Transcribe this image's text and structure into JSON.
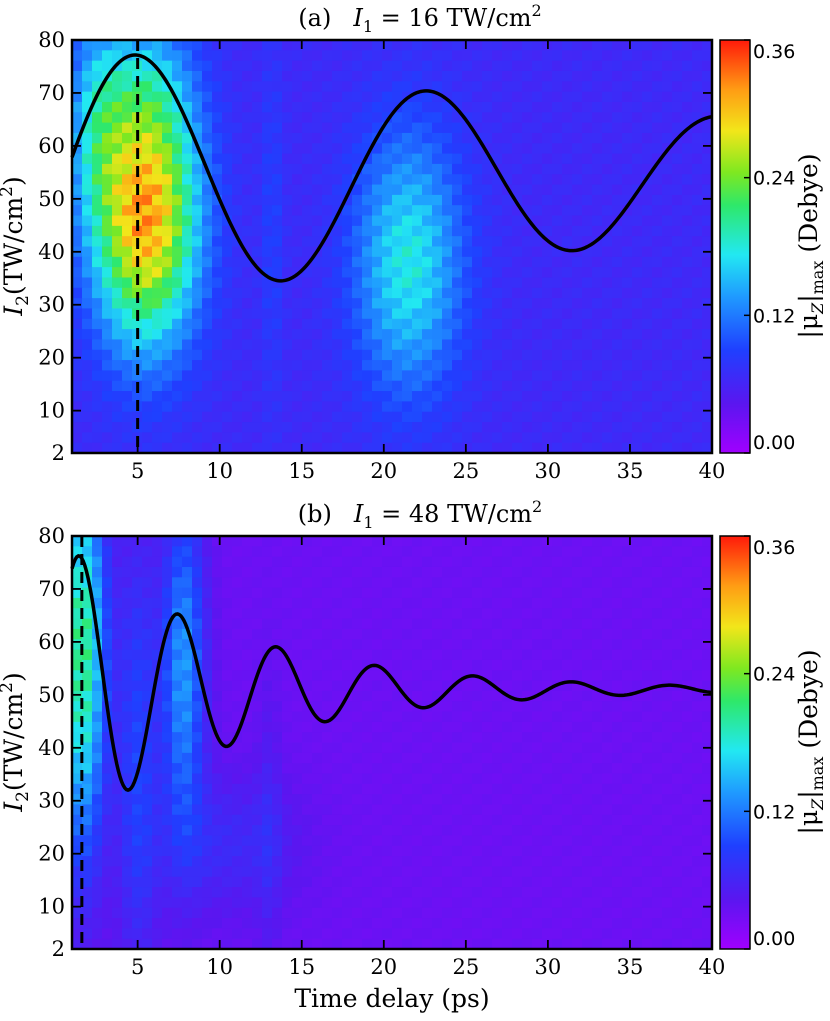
{
  "chart_data": [
    {
      "type": "heatmap",
      "title": "(a)   I₁ = 16 TW/cm²",
      "title_parts": {
        "label": "(a)",
        "var": "I",
        "sub": "1",
        "rest": " = 16 TW/cm",
        "sup": "2"
      },
      "ylabel_parts": {
        "var": "I",
        "sub": "2",
        "rest": "(TW/cm",
        "sup": "2",
        "close": ")"
      },
      "x_ticks": [
        5,
        10,
        15,
        20,
        25,
        30,
        35,
        40
      ],
      "y_ticks": [
        2,
        10,
        20,
        30,
        40,
        50,
        60,
        70,
        80
      ],
      "xlim": [
        1,
        40
      ],
      "ylim": [
        2,
        80
      ],
      "colorbar": {
        "ticks": [
          "0.00",
          "0.12",
          "0.24",
          "0.36"
        ],
        "range": [
          0,
          0.36
        ]
      },
      "colorbar_label_parts": {
        "pre": "|μ",
        "sub1": "Z",
        "mid": "|",
        "sub2": "max",
        "post": " (Debye)"
      },
      "heat_blobs": [
        {
          "x": 5.5,
          "y": 47,
          "sx": 2.2,
          "sy": 17,
          "amp": 0.27
        },
        {
          "x": 5.5,
          "y": 72,
          "sx": 2.0,
          "sy": 9,
          "amp": 0.05
        },
        {
          "x": 2.5,
          "y": 65,
          "sx": 1.2,
          "sy": 14,
          "amp": 0.08
        },
        {
          "x": 21.5,
          "y": 38,
          "sx": 2.3,
          "sy": 17,
          "amp": 0.12
        },
        {
          "x": 13.2,
          "y": 45,
          "sx": 0.5,
          "sy": 25,
          "amp": 0.025
        }
      ],
      "heat_base": 0.07,
      "curve": {
        "center": 54,
        "amp": 25.5,
        "decay": 0.0195,
        "omega": 0.3541,
        "phi": -1.7705
      },
      "dashed_line_x": 5,
      "x_range_curve": [
        1,
        40
      ]
    },
    {
      "type": "heatmap",
      "title": "(b)   I₁ = 48 TW/cm²",
      "title_parts": {
        "label": "(b)",
        "var": "I",
        "sub": "1",
        "rest": " = 48 TW/cm",
        "sup": "2"
      },
      "ylabel_parts": {
        "var": "I",
        "sub": "2",
        "rest": "(TW/cm",
        "sup": "2",
        "close": ")"
      },
      "xlabel": "Time delay (ps)",
      "x_ticks": [
        5,
        10,
        15,
        20,
        25,
        30,
        35,
        40
      ],
      "y_ticks": [
        2,
        10,
        20,
        30,
        40,
        50,
        60,
        70,
        80
      ],
      "xlim": [
        1,
        40
      ],
      "ylim": [
        2,
        80
      ],
      "colorbar": {
        "ticks": [
          "0.00",
          "0.12",
          "0.24",
          "0.36"
        ],
        "range": [
          0,
          0.36
        ]
      },
      "colorbar_label_parts": {
        "pre": "|μ",
        "sub1": "Z",
        "mid": "|",
        "sub2": "max",
        "post": " (Debye)"
      },
      "heat_blobs": [
        {
          "x": 1.6,
          "y": 58,
          "sx": 1.0,
          "sy": 26,
          "amp": 0.19
        },
        {
          "x": 7.8,
          "y": 55,
          "sx": 0.9,
          "sy": 22,
          "amp": 0.11
        },
        {
          "x": 5.0,
          "y": 40,
          "sx": 0.9,
          "sy": 30,
          "amp": 0.06
        },
        {
          "x": 10.5,
          "y": 22,
          "sx": 3.0,
          "sy": 9,
          "amp": 0.035
        },
        {
          "x": 13.0,
          "y": 25,
          "sx": 0.5,
          "sy": 20,
          "amp": 0.02
        }
      ],
      "heat_base": 0.035,
      "curve": {
        "center": 51,
        "amp": 29,
        "decay": 0.095,
        "omega": 1.0472,
        "phi": -1.5708
      },
      "dashed_line_x": 1.6,
      "x_range_curve": [
        1,
        40
      ]
    }
  ]
}
